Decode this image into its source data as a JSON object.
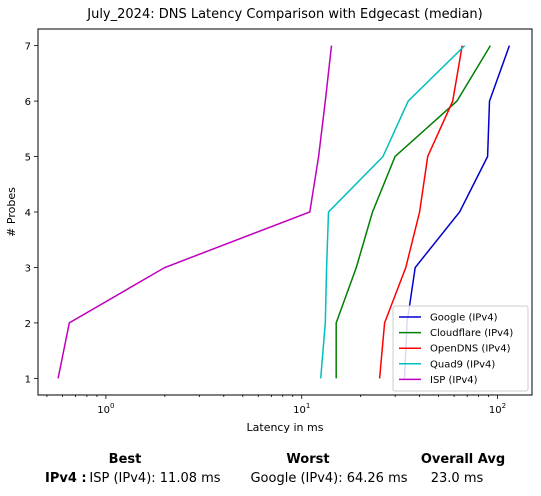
{
  "chart_data": {
    "type": "line",
    "title": "July_2024: DNS Latency Comparison with Edgecast (median)",
    "xlabel": "Latency in ms",
    "ylabel": "# Probes",
    "xscale": "log",
    "xlim": [
      0.45,
      150
    ],
    "ylim": [
      0.7,
      7.3
    ],
    "xticks": [
      {
        "value": 1,
        "base": "10",
        "exp": "0"
      },
      {
        "value": 10,
        "base": "10",
        "exp": "1"
      },
      {
        "value": 100,
        "base": "10",
        "exp": "2"
      }
    ],
    "yticks": [
      1,
      2,
      3,
      4,
      5,
      6,
      7
    ],
    "legend_position": "lower-right",
    "grid": false,
    "series": [
      {
        "name": "Google (IPv4)",
        "color": "#0000cc",
        "points": [
          [
            33.5,
            1
          ],
          [
            34.5,
            2
          ],
          [
            38,
            3
          ],
          [
            64,
            4
          ],
          [
            89,
            5
          ],
          [
            91,
            6
          ],
          [
            115,
            7
          ]
        ]
      },
      {
        "name": "Cloudflare (IPv4)",
        "color": "#008000",
        "points": [
          [
            15,
            1
          ],
          [
            15,
            2
          ],
          [
            19,
            3
          ],
          [
            23,
            4
          ],
          [
            30,
            5
          ],
          [
            62,
            6
          ],
          [
            92,
            7
          ]
        ]
      },
      {
        "name": "OpenDNS (IPv4)",
        "color": "#ff0000",
        "points": [
          [
            25,
            1
          ],
          [
            26.5,
            2
          ],
          [
            34,
            3
          ],
          [
            40,
            4
          ],
          [
            44,
            5
          ],
          [
            59,
            6
          ],
          [
            66,
            7
          ]
        ]
      },
      {
        "name": "Quad9 (IPv4)",
        "color": "#00bfbf",
        "points": [
          [
            12.5,
            1
          ],
          [
            13.2,
            2
          ],
          [
            13.4,
            3
          ],
          [
            13.7,
            4
          ],
          [
            26,
            5
          ],
          [
            35,
            6
          ],
          [
            68,
            7
          ]
        ]
      },
      {
        "name": "ISP (IPv4)",
        "color": "#bf00bf",
        "points": [
          [
            0.57,
            1
          ],
          [
            0.65,
            2
          ],
          [
            2.0,
            3
          ],
          [
            11.0,
            4
          ],
          [
            12.2,
            5
          ],
          [
            13.2,
            6
          ],
          [
            14.2,
            7
          ]
        ]
      }
    ]
  },
  "summary": {
    "row_label": "IPv4 :",
    "best_header": "Best",
    "worst_header": "Worst",
    "avg_header": "Overall Avg",
    "best_value": "ISP (IPv4): 11.08 ms",
    "worst_value": "Google (IPv4): 64.26 ms",
    "avg_value": "23.0 ms"
  }
}
